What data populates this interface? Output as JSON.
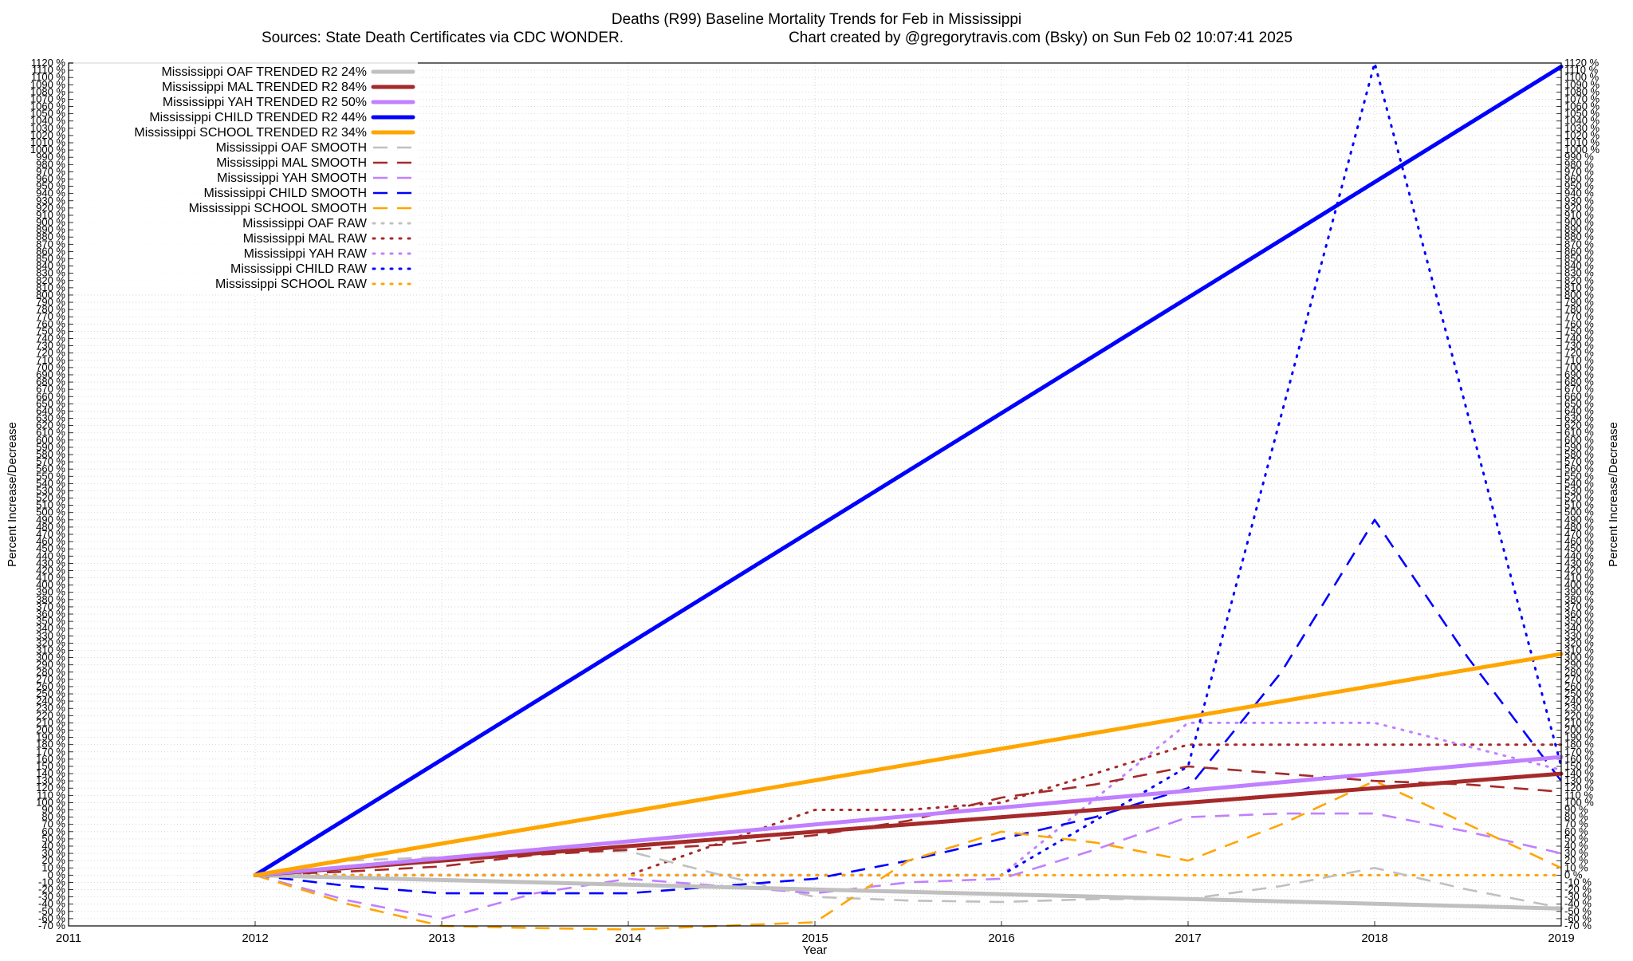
{
  "title": "Deaths (R99)  Baseline Mortality Trends for Feb in Mississippi",
  "subtitle_left": "Sources: State Death Certificates via CDC WONDER.",
  "subtitle_right": "Chart created by @gregorytravis.com (Bsky) on Sun Feb 02 10:07:41 2025",
  "chart_data": {
    "type": "line",
    "title": "Deaths (R99)  Baseline Mortality Trends for Feb in Mississippi",
    "xlabel": "Year",
    "ylabel": "Percent Increase/Decrease",
    "y2label": "Percent Increase/Decrease",
    "xlim": [
      2011,
      2019
    ],
    "ylim": [
      -70,
      1120
    ],
    "x_ticks": [
      2011,
      2012,
      2013,
      2014,
      2015,
      2016,
      2017,
      2018,
      2019
    ],
    "y_tick_step": 10,
    "y_tick_suffix": " %",
    "grid": true,
    "legend_position": "top-left",
    "series": [
      {
        "name": "Mississippi OAF TRENDED R2  24%",
        "style": "solid-thick",
        "color": "#c0c0c0",
        "x": [
          2012,
          2019
        ],
        "y": [
          0,
          -46
        ]
      },
      {
        "name": "Mississippi MAL TRENDED R2  84%",
        "style": "solid-thick",
        "color": "#a52a2a",
        "x": [
          2012,
          2019
        ],
        "y": [
          0,
          140
        ]
      },
      {
        "name": "Mississippi YAH TRENDED R2  50%",
        "style": "solid-thick",
        "color": "#c080ff",
        "x": [
          2012,
          2019
        ],
        "y": [
          0,
          163
        ]
      },
      {
        "name": "Mississippi CHILD TRENDED R2  44%",
        "style": "solid-thick",
        "color": "#0000ff",
        "x": [
          2012,
          2019
        ],
        "y": [
          0,
          1115
        ]
      },
      {
        "name": "Mississippi SCHOOL TRENDED R2  34%",
        "style": "solid-thick",
        "color": "#ffa500",
        "x": [
          2012,
          2019
        ],
        "y": [
          0,
          305
        ]
      },
      {
        "name": "Mississippi OAF SMOOTH",
        "style": "dashed",
        "color": "#c0c0c0",
        "x": [
          2012,
          2012.5,
          2013,
          2013.5,
          2014,
          2014.5,
          2015,
          2015.5,
          2016,
          2016.5,
          2017,
          2017.5,
          2018,
          2018.5,
          2019
        ],
        "y": [
          0,
          20,
          25,
          33,
          33,
          0,
          -30,
          -35,
          -37,
          -33,
          -33,
          -15,
          10,
          -20,
          -45
        ]
      },
      {
        "name": "Mississippi MAL SMOOTH",
        "style": "dashed",
        "color": "#a52a2a",
        "x": [
          2012,
          2012.5,
          2013,
          2013.5,
          2014,
          2014.5,
          2015,
          2015.5,
          2016,
          2016.5,
          2017,
          2017.5,
          2018,
          2018.5,
          2019
        ],
        "y": [
          0,
          5,
          12,
          28,
          35,
          42,
          55,
          75,
          107,
          125,
          150,
          140,
          130,
          125,
          115
        ]
      },
      {
        "name": "Mississippi YAH SMOOTH",
        "style": "dashed",
        "color": "#c080ff",
        "x": [
          2012,
          2012.5,
          2013,
          2013.5,
          2014,
          2014.5,
          2015,
          2015.5,
          2016,
          2016.5,
          2017,
          2017.5,
          2018,
          2018.5,
          2019
        ],
        "y": [
          0,
          -35,
          -60,
          -25,
          -5,
          -15,
          -25,
          -10,
          -5,
          35,
          80,
          85,
          85,
          60,
          30
        ]
      },
      {
        "name": "Mississippi CHILD SMOOTH",
        "style": "dashed",
        "color": "#0000ff",
        "x": [
          2012,
          2012.5,
          2013,
          2013.5,
          2014,
          2014.5,
          2015,
          2015.5,
          2016,
          2016.5,
          2017,
          2017.5,
          2018,
          2018.5,
          2019
        ],
        "y": [
          0,
          -15,
          -25,
          -25,
          -25,
          -15,
          -5,
          20,
          50,
          80,
          120,
          280,
          490,
          300,
          130
        ]
      },
      {
        "name": "Mississippi SCHOOL SMOOTH",
        "style": "dashed",
        "color": "#ffa500",
        "x": [
          2012,
          2012.5,
          2013,
          2013.5,
          2014,
          2014.5,
          2015,
          2015.5,
          2016,
          2016.5,
          2017,
          2017.5,
          2018,
          2018.5,
          2019
        ],
        "y": [
          0,
          -40,
          -70,
          -73,
          -75,
          -70,
          -65,
          20,
          60,
          45,
          20,
          70,
          130,
          70,
          10
        ]
      },
      {
        "name": "Mississippi OAF RAW",
        "style": "dotted",
        "color": "#c0c0c0",
        "x": [
          2012,
          2013,
          2014,
          2015,
          2016,
          2017,
          2018,
          2019
        ],
        "y": [
          0,
          0,
          0,
          0,
          0,
          0,
          0,
          0
        ]
      },
      {
        "name": "Mississippi MAL RAW",
        "style": "dotted",
        "color": "#a52a2a",
        "x": [
          2012,
          2013,
          2014,
          2015,
          2015.5,
          2016,
          2017,
          2018,
          2019
        ],
        "y": [
          0,
          0,
          0,
          90,
          90,
          100,
          180,
          180,
          180
        ]
      },
      {
        "name": "Mississippi YAH RAW",
        "style": "dotted",
        "color": "#c080ff",
        "x": [
          2012,
          2013,
          2014,
          2015,
          2016,
          2017,
          2018,
          2019
        ],
        "y": [
          0,
          0,
          0,
          0,
          0,
          210,
          210,
          145
        ]
      },
      {
        "name": "Mississippi CHILD RAW",
        "style": "dotted",
        "color": "#0000ff",
        "x": [
          2012,
          2013,
          2014,
          2015,
          2016,
          2017,
          2018,
          2019
        ],
        "y": [
          0,
          0,
          0,
          0,
          0,
          150,
          1120,
          150
        ]
      },
      {
        "name": "Mississippi SCHOOL RAW",
        "style": "dotted",
        "color": "#ffa500",
        "x": [
          2012,
          2013,
          2014,
          2015,
          2016,
          2017,
          2018,
          2019
        ],
        "y": [
          0,
          0,
          0,
          0,
          0,
          0,
          0,
          0
        ]
      }
    ]
  }
}
